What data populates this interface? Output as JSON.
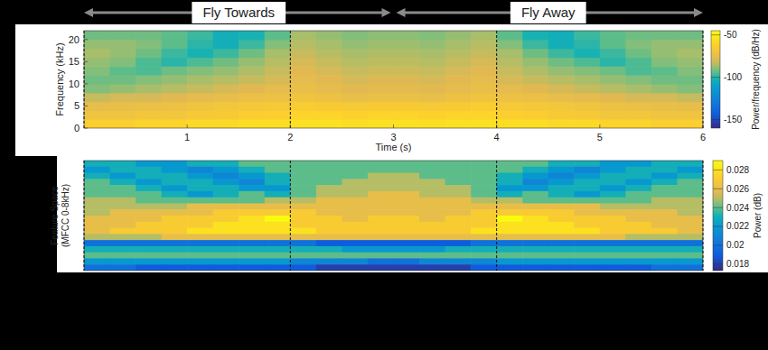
{
  "chart_data": [
    {
      "type": "heatmap",
      "xlabel": "Time (s)",
      "ylabel": "Frequency (kHz)",
      "xlim": [
        0,
        6
      ],
      "xticks": [
        1,
        2,
        3,
        4,
        5,
        6
      ],
      "ylim": [
        0,
        22
      ],
      "yticks": [
        0,
        5,
        10,
        15,
        20
      ],
      "x_edges": [
        0,
        0.25,
        0.5,
        0.75,
        1,
        1.25,
        1.5,
        1.75,
        2,
        2.25,
        2.5,
        2.75,
        3,
        3.25,
        3.5,
        3.75,
        4,
        4.25,
        4.5,
        4.75,
        5,
        5.25,
        5.5,
        5.75,
        6
      ],
      "y_edges": [
        0,
        2,
        4,
        6,
        8,
        10,
        12,
        14,
        16,
        18,
        20,
        22
      ],
      "cells": [
        [
          -62,
          -62,
          -60,
          -60,
          -58,
          -58,
          -56,
          -56,
          -55,
          -55,
          -56,
          -55,
          -55,
          -56,
          -55,
          -55,
          -56,
          -56,
          -58,
          -58,
          -60,
          -60,
          -62,
          -62
        ],
        [
          -70,
          -70,
          -68,
          -68,
          -66,
          -65,
          -63,
          -62,
          -60,
          -60,
          -61,
          -60,
          -60,
          -61,
          -60,
          -60,
          -62,
          -63,
          -65,
          -66,
          -68,
          -68,
          -70,
          -70
        ],
        [
          -75,
          -74,
          -73,
          -72,
          -70,
          -68,
          -67,
          -66,
          -64,
          -65,
          -66,
          -65,
          -65,
          -66,
          -65,
          -64,
          -66,
          -67,
          -68,
          -70,
          -72,
          -73,
          -74,
          -75
        ],
        [
          -82,
          -80,
          -80,
          -78,
          -76,
          -75,
          -73,
          -72,
          -70,
          -72,
          -74,
          -73,
          -73,
          -74,
          -72,
          -70,
          -72,
          -73,
          -75,
          -76,
          -78,
          -80,
          -80,
          -82
        ],
        [
          -90,
          -88,
          -86,
          -84,
          -82,
          -80,
          -78,
          -76,
          -74,
          -76,
          -78,
          -77,
          -77,
          -78,
          -76,
          -74,
          -76,
          -78,
          -80,
          -82,
          -84,
          -86,
          -88,
          -90
        ],
        [
          -92,
          -92,
          -90,
          -88,
          -86,
          -84,
          -82,
          -80,
          -76,
          -78,
          -80,
          -79,
          -79,
          -80,
          -78,
          -76,
          -80,
          -82,
          -84,
          -86,
          -88,
          -90,
          -92,
          -92
        ],
        [
          -90,
          -94,
          -96,
          -92,
          -90,
          -88,
          -85,
          -82,
          -78,
          -80,
          -82,
          -81,
          -81,
          -82,
          -80,
          -78,
          -82,
          -85,
          -88,
          -90,
          -92,
          -96,
          -94,
          -90
        ],
        [
          -88,
          -90,
          -96,
          -100,
          -96,
          -92,
          -88,
          -84,
          -80,
          -82,
          -84,
          -83,
          -83,
          -84,
          -82,
          -80,
          -84,
          -88,
          -92,
          -96,
          -100,
          -96,
          -90,
          -88
        ],
        [
          -86,
          -88,
          -92,
          -98,
          -102,
          -98,
          -92,
          -86,
          -82,
          -84,
          -86,
          -85,
          -85,
          -86,
          -84,
          -82,
          -86,
          -92,
          -98,
          -102,
          -98,
          -92,
          -88,
          -86
        ],
        [
          -88,
          -88,
          -90,
          -94,
          -100,
          -104,
          -98,
          -90,
          -84,
          -86,
          -88,
          -87,
          -87,
          -88,
          -86,
          -84,
          -90,
          -98,
          -104,
          -100,
          -94,
          -90,
          -88,
          -88
        ],
        [
          -92,
          -92,
          -92,
          -94,
          -98,
          -104,
          -102,
          -94,
          -86,
          -88,
          -90,
          -89,
          -89,
          -90,
          -88,
          -86,
          -94,
          -102,
          -104,
          -98,
          -94,
          -92,
          -92,
          -92
        ]
      ],
      "colorbar": {
        "label": "Power/frequency (dB/Hz)",
        "range": [
          -160,
          -45
        ],
        "ticks": [
          -50,
          -100,
          -150
        ]
      },
      "boundaries": [
        0,
        2,
        4,
        6
      ],
      "annotations": [
        {
          "text": "Fly Towards",
          "x_range": [
            0,
            3
          ]
        },
        {
          "text": "Fly Away",
          "x_range": [
            3,
            6
          ]
        }
      ]
    },
    {
      "type": "heatmap",
      "ylabel": [
        "Feature Space",
        "(MFCC 0-8kHz)"
      ],
      "xlim": [
        0,
        6
      ],
      "tick_labels": false,
      "x_edges": [
        0,
        0.25,
        0.5,
        0.75,
        1,
        1.25,
        1.5,
        1.75,
        2,
        2.25,
        2.5,
        2.75,
        3,
        3.25,
        3.5,
        3.75,
        4,
        4.25,
        4.5,
        4.75,
        5,
        5.25,
        5.5,
        5.75,
        6
      ],
      "cells": [
        [
          0.023,
          0.023,
          0.022,
          0.022,
          0.023,
          0.023,
          0.024,
          0.024,
          0.024,
          0.024,
          0.024,
          0.024,
          0.024,
          0.024,
          0.024,
          0.024,
          0.024,
          0.024,
          0.023,
          0.023,
          0.022,
          0.022,
          0.023,
          0.023
        ],
        [
          0.022,
          0.023,
          0.023,
          0.022,
          0.021,
          0.022,
          0.023,
          0.024,
          0.024,
          0.024,
          0.024,
          0.024,
          0.024,
          0.024,
          0.024,
          0.024,
          0.024,
          0.023,
          0.022,
          0.021,
          0.022,
          0.023,
          0.023,
          0.022
        ],
        [
          0.023,
          0.022,
          0.023,
          0.023,
          0.022,
          0.021,
          0.022,
          0.023,
          0.024,
          0.024,
          0.024,
          0.025,
          0.025,
          0.024,
          0.024,
          0.024,
          0.023,
          0.022,
          0.021,
          0.022,
          0.023,
          0.023,
          0.022,
          0.023
        ],
        [
          0.024,
          0.023,
          0.022,
          0.023,
          0.023,
          0.022,
          0.021,
          0.023,
          0.024,
          0.024,
          0.025,
          0.025,
          0.025,
          0.025,
          0.024,
          0.024,
          0.023,
          0.021,
          0.022,
          0.023,
          0.023,
          0.022,
          0.023,
          0.024
        ],
        [
          0.024,
          0.024,
          0.023,
          0.022,
          0.023,
          0.023,
          0.022,
          0.022,
          0.024,
          0.025,
          0.025,
          0.025,
          0.025,
          0.025,
          0.025,
          0.024,
          0.022,
          0.022,
          0.023,
          0.023,
          0.022,
          0.023,
          0.024,
          0.024
        ],
        [
          0.024,
          0.024,
          0.024,
          0.023,
          0.022,
          0.023,
          0.024,
          0.023,
          0.024,
          0.025,
          0.025,
          0.026,
          0.026,
          0.025,
          0.025,
          0.024,
          0.023,
          0.024,
          0.023,
          0.022,
          0.023,
          0.024,
          0.024,
          0.024
        ],
        [
          0.025,
          0.025,
          0.024,
          0.024,
          0.024,
          0.024,
          0.024,
          0.025,
          0.025,
          0.026,
          0.026,
          0.026,
          0.026,
          0.026,
          0.026,
          0.025,
          0.025,
          0.024,
          0.024,
          0.024,
          0.024,
          0.024,
          0.025,
          0.025
        ],
        [
          0.025,
          0.025,
          0.025,
          0.025,
          0.026,
          0.026,
          0.026,
          0.026,
          0.026,
          0.026,
          0.026,
          0.026,
          0.026,
          0.026,
          0.026,
          0.026,
          0.026,
          0.026,
          0.026,
          0.026,
          0.025,
          0.025,
          0.025,
          0.025
        ],
        [
          0.025,
          0.026,
          0.026,
          0.026,
          0.026,
          0.027,
          0.027,
          0.027,
          0.027,
          0.026,
          0.026,
          0.026,
          0.026,
          0.026,
          0.026,
          0.027,
          0.027,
          0.027,
          0.027,
          0.026,
          0.026,
          0.026,
          0.026,
          0.025
        ],
        [
          0.026,
          0.026,
          0.026,
          0.027,
          0.027,
          0.027,
          0.028,
          0.029,
          0.027,
          0.027,
          0.026,
          0.027,
          0.027,
          0.026,
          0.027,
          0.027,
          0.029,
          0.028,
          0.027,
          0.027,
          0.027,
          0.026,
          0.026,
          0.026
        ],
        [
          0.026,
          0.026,
          0.027,
          0.027,
          0.027,
          0.028,
          0.028,
          0.028,
          0.027,
          0.027,
          0.027,
          0.027,
          0.027,
          0.027,
          0.027,
          0.027,
          0.028,
          0.028,
          0.028,
          0.027,
          0.027,
          0.027,
          0.026,
          0.026
        ],
        [
          0.026,
          0.027,
          0.027,
          0.027,
          0.028,
          0.028,
          0.028,
          0.028,
          0.028,
          0.027,
          0.027,
          0.027,
          0.027,
          0.027,
          0.027,
          0.028,
          0.028,
          0.028,
          0.028,
          0.028,
          0.027,
          0.027,
          0.027,
          0.026
        ],
        [
          0.025,
          0.025,
          0.025,
          0.026,
          0.026,
          0.026,
          0.026,
          0.026,
          0.026,
          0.026,
          0.026,
          0.026,
          0.026,
          0.026,
          0.026,
          0.026,
          0.026,
          0.026,
          0.026,
          0.026,
          0.026,
          0.025,
          0.025,
          0.025
        ],
        [
          0.02,
          0.02,
          0.02,
          0.02,
          0.02,
          0.02,
          0.02,
          0.02,
          0.02,
          0.019,
          0.019,
          0.019,
          0.019,
          0.019,
          0.019,
          0.02,
          0.02,
          0.02,
          0.02,
          0.02,
          0.02,
          0.02,
          0.02,
          0.02
        ],
        [
          0.023,
          0.023,
          0.023,
          0.023,
          0.023,
          0.023,
          0.023,
          0.023,
          0.023,
          0.023,
          0.022,
          0.022,
          0.022,
          0.022,
          0.023,
          0.023,
          0.023,
          0.023,
          0.023,
          0.023,
          0.023,
          0.023,
          0.023,
          0.023
        ],
        [
          0.024,
          0.024,
          0.024,
          0.024,
          0.024,
          0.024,
          0.024,
          0.024,
          0.024,
          0.024,
          0.024,
          0.024,
          0.024,
          0.024,
          0.024,
          0.024,
          0.024,
          0.024,
          0.024,
          0.024,
          0.024,
          0.024,
          0.024,
          0.024
        ],
        [
          0.022,
          0.022,
          0.022,
          0.022,
          0.022,
          0.022,
          0.022,
          0.022,
          0.021,
          0.021,
          0.021,
          0.02,
          0.02,
          0.021,
          0.021,
          0.021,
          0.022,
          0.022,
          0.022,
          0.022,
          0.022,
          0.022,
          0.022,
          0.022
        ],
        [
          0.02,
          0.02,
          0.019,
          0.019,
          0.019,
          0.019,
          0.019,
          0.019,
          0.019,
          0.018,
          0.018,
          0.018,
          0.018,
          0.018,
          0.018,
          0.019,
          0.019,
          0.019,
          0.019,
          0.019,
          0.019,
          0.019,
          0.02,
          0.02
        ]
      ],
      "colorbar": {
        "label": "Power (dB)",
        "range": [
          0.0173,
          0.029
        ],
        "ticks": [
          0.018,
          0.02,
          0.022,
          0.024,
          0.026,
          0.028
        ]
      },
      "boundaries": [
        0,
        2,
        4,
        6
      ]
    }
  ]
}
